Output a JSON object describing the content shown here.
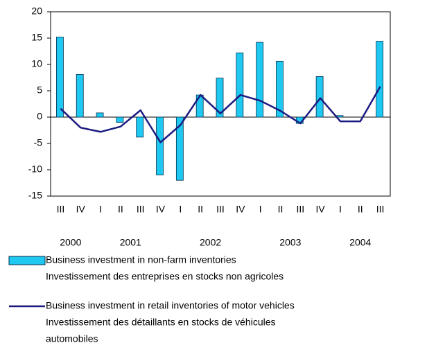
{
  "chart_data": {
    "type": "bar_line",
    "categories": [
      "III",
      "IV",
      "I",
      "II",
      "III",
      "IV",
      "I",
      "II",
      "III",
      "IV",
      "I",
      "II",
      "III",
      "IV",
      "I",
      "II",
      "III"
    ],
    "category_groups": [
      {
        "label": "2000",
        "count": 2
      },
      {
        "label": "2001",
        "count": 4
      },
      {
        "label": "2002",
        "count": 4
      },
      {
        "label": "2003",
        "count": 4
      },
      {
        "label": "2004",
        "count": 3
      }
    ],
    "series": [
      {
        "name": [
          "Business investment in non-farm inventories",
          "Investissement des entreprises en stocks non agricoles"
        ],
        "type": "bar",
        "color": "#1ec8f0",
        "values": [
          15.2,
          8.1,
          0.8,
          -1,
          -3.8,
          -11,
          -12,
          4.2,
          7.4,
          12.2,
          14.2,
          10.6,
          -1.2,
          7.7,
          0.3,
          0,
          14.4
        ]
      },
      {
        "name": [
          "Business investment in retail inventories of motor vehicles",
          "Investissement des détaillants en stocks de véhicules",
          "automobiles"
        ],
        "type": "line",
        "color": "#1a1a80",
        "values": [
          1.6,
          -2,
          -2.8,
          -1.8,
          1.3,
          -4.8,
          -1.5,
          4.2,
          0.7,
          4.2,
          3.1,
          1.2,
          -1.2,
          3.6,
          -0.8,
          -0.8,
          5.8
        ]
      }
    ],
    "ylim": [
      -15,
      20
    ],
    "yticks": [
      -15,
      -10,
      -5,
      0,
      5,
      10,
      15,
      20
    ]
  }
}
